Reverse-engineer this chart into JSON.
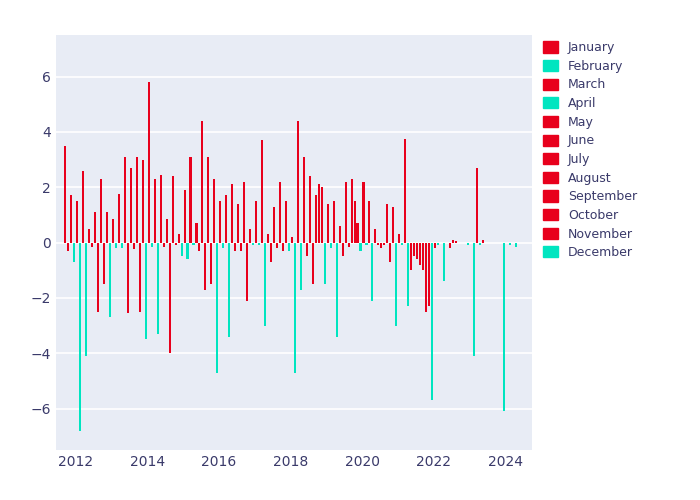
{
  "fig_bg_color": "#ffffff",
  "plot_bg_color": "#e8ecf5",
  "red_color": "#e8001c",
  "cyan_color": "#00e5c0",
  "months": [
    "January",
    "February",
    "March",
    "April",
    "May",
    "June",
    "July",
    "August",
    "September",
    "October",
    "November",
    "December"
  ],
  "month_colors": [
    "#e8001c",
    "#00e5c0",
    "#e8001c",
    "#00e5c0",
    "#e8001c",
    "#e8001c",
    "#e8001c",
    "#e8001c",
    "#e8001c",
    "#e8001c",
    "#e8001c",
    "#00e5c0"
  ],
  "data": [
    {
      "year": 2011,
      "month": 9,
      "value": 3.5
    },
    {
      "year": 2011,
      "month": 10,
      "value": -0.3
    },
    {
      "year": 2011,
      "month": 11,
      "value": 1.7
    },
    {
      "year": 2011,
      "month": 12,
      "value": -0.7
    },
    {
      "year": 2012,
      "month": 1,
      "value": 1.5
    },
    {
      "year": 2012,
      "month": 2,
      "value": -6.8
    },
    {
      "year": 2012,
      "month": 3,
      "value": 2.6
    },
    {
      "year": 2012,
      "month": 4,
      "value": -4.1
    },
    {
      "year": 2012,
      "month": 5,
      "value": 0.5
    },
    {
      "year": 2012,
      "month": 6,
      "value": -0.15
    },
    {
      "year": 2012,
      "month": 7,
      "value": 1.1
    },
    {
      "year": 2012,
      "month": 8,
      "value": -2.5
    },
    {
      "year": 2012,
      "month": 9,
      "value": 2.3
    },
    {
      "year": 2012,
      "month": 10,
      "value": -1.5
    },
    {
      "year": 2012,
      "month": 11,
      "value": 1.1
    },
    {
      "year": 2012,
      "month": 12,
      "value": -2.7
    },
    {
      "year": 2013,
      "month": 1,
      "value": 0.85
    },
    {
      "year": 2013,
      "month": 2,
      "value": -0.2
    },
    {
      "year": 2013,
      "month": 3,
      "value": 1.75
    },
    {
      "year": 2013,
      "month": 4,
      "value": -0.2
    },
    {
      "year": 2013,
      "month": 5,
      "value": 3.1
    },
    {
      "year": 2013,
      "month": 6,
      "value": -2.55
    },
    {
      "year": 2013,
      "month": 7,
      "value": 2.7
    },
    {
      "year": 2013,
      "month": 8,
      "value": -0.25
    },
    {
      "year": 2013,
      "month": 9,
      "value": 3.1
    },
    {
      "year": 2013,
      "month": 10,
      "value": -2.5
    },
    {
      "year": 2013,
      "month": 11,
      "value": 3.0
    },
    {
      "year": 2013,
      "month": 12,
      "value": -3.5
    },
    {
      "year": 2014,
      "month": 1,
      "value": 5.8
    },
    {
      "year": 2014,
      "month": 2,
      "value": -0.15
    },
    {
      "year": 2014,
      "month": 3,
      "value": 2.3
    },
    {
      "year": 2014,
      "month": 4,
      "value": -3.3
    },
    {
      "year": 2014,
      "month": 5,
      "value": 2.45
    },
    {
      "year": 2014,
      "month": 6,
      "value": -0.15
    },
    {
      "year": 2014,
      "month": 7,
      "value": 0.85
    },
    {
      "year": 2014,
      "month": 8,
      "value": -4.0
    },
    {
      "year": 2014,
      "month": 9,
      "value": 2.4
    },
    {
      "year": 2014,
      "month": 10,
      "value": -0.1
    },
    {
      "year": 2014,
      "month": 11,
      "value": 0.3
    },
    {
      "year": 2014,
      "month": 12,
      "value": -0.5
    },
    {
      "year": 2015,
      "month": 1,
      "value": 1.9
    },
    {
      "year": 2015,
      "month": 2,
      "value": -0.6
    },
    {
      "year": 2015,
      "month": 3,
      "value": 3.1
    },
    {
      "year": 2015,
      "month": 4,
      "value": -0.1
    },
    {
      "year": 2015,
      "month": 5,
      "value": 0.7
    },
    {
      "year": 2015,
      "month": 6,
      "value": -0.3
    },
    {
      "year": 2015,
      "month": 7,
      "value": 4.4
    },
    {
      "year": 2015,
      "month": 8,
      "value": -1.7
    },
    {
      "year": 2015,
      "month": 9,
      "value": 3.1
    },
    {
      "year": 2015,
      "month": 10,
      "value": -1.5
    },
    {
      "year": 2015,
      "month": 11,
      "value": 2.3
    },
    {
      "year": 2015,
      "month": 12,
      "value": -4.7
    },
    {
      "year": 2016,
      "month": 1,
      "value": 1.5
    },
    {
      "year": 2016,
      "month": 2,
      "value": -0.2
    },
    {
      "year": 2016,
      "month": 3,
      "value": 1.7
    },
    {
      "year": 2016,
      "month": 4,
      "value": -3.4
    },
    {
      "year": 2016,
      "month": 5,
      "value": 2.1
    },
    {
      "year": 2016,
      "month": 6,
      "value": -0.3
    },
    {
      "year": 2016,
      "month": 7,
      "value": 1.4
    },
    {
      "year": 2016,
      "month": 8,
      "value": -0.3
    },
    {
      "year": 2016,
      "month": 9,
      "value": 2.2
    },
    {
      "year": 2016,
      "month": 10,
      "value": -2.1
    },
    {
      "year": 2016,
      "month": 11,
      "value": 0.5
    },
    {
      "year": 2016,
      "month": 12,
      "value": -0.1
    },
    {
      "year": 2017,
      "month": 1,
      "value": 1.5
    },
    {
      "year": 2017,
      "month": 2,
      "value": -0.1
    },
    {
      "year": 2017,
      "month": 3,
      "value": 3.7
    },
    {
      "year": 2017,
      "month": 4,
      "value": -3.0
    },
    {
      "year": 2017,
      "month": 5,
      "value": 0.3
    },
    {
      "year": 2017,
      "month": 6,
      "value": -0.7
    },
    {
      "year": 2017,
      "month": 7,
      "value": 1.3
    },
    {
      "year": 2017,
      "month": 8,
      "value": -0.2
    },
    {
      "year": 2017,
      "month": 9,
      "value": 2.2
    },
    {
      "year": 2017,
      "month": 10,
      "value": -0.3
    },
    {
      "year": 2017,
      "month": 11,
      "value": 1.5
    },
    {
      "year": 2017,
      "month": 12,
      "value": -0.3
    },
    {
      "year": 2018,
      "month": 1,
      "value": 0.2
    },
    {
      "year": 2018,
      "month": 2,
      "value": -4.7
    },
    {
      "year": 2018,
      "month": 3,
      "value": 4.4
    },
    {
      "year": 2018,
      "month": 4,
      "value": -1.7
    },
    {
      "year": 2018,
      "month": 5,
      "value": 3.1
    },
    {
      "year": 2018,
      "month": 6,
      "value": -0.5
    },
    {
      "year": 2018,
      "month": 7,
      "value": 2.4
    },
    {
      "year": 2018,
      "month": 8,
      "value": -1.5
    },
    {
      "year": 2018,
      "month": 9,
      "value": 1.7
    },
    {
      "year": 2018,
      "month": 10,
      "value": 2.1
    },
    {
      "year": 2018,
      "month": 11,
      "value": 2.0
    },
    {
      "year": 2018,
      "month": 12,
      "value": -1.5
    },
    {
      "year": 2019,
      "month": 1,
      "value": 1.4
    },
    {
      "year": 2019,
      "month": 2,
      "value": -0.2
    },
    {
      "year": 2019,
      "month": 3,
      "value": 1.5
    },
    {
      "year": 2019,
      "month": 4,
      "value": -3.4
    },
    {
      "year": 2019,
      "month": 5,
      "value": 0.6
    },
    {
      "year": 2019,
      "month": 6,
      "value": -0.5
    },
    {
      "year": 2019,
      "month": 7,
      "value": 2.2
    },
    {
      "year": 2019,
      "month": 8,
      "value": -0.15
    },
    {
      "year": 2019,
      "month": 9,
      "value": 2.3
    },
    {
      "year": 2019,
      "month": 10,
      "value": 1.5
    },
    {
      "year": 2019,
      "month": 11,
      "value": 0.7
    },
    {
      "year": 2019,
      "month": 12,
      "value": -0.3
    },
    {
      "year": 2020,
      "month": 1,
      "value": 2.2
    },
    {
      "year": 2020,
      "month": 2,
      "value": -0.1
    },
    {
      "year": 2020,
      "month": 3,
      "value": 1.5
    },
    {
      "year": 2020,
      "month": 4,
      "value": -2.1
    },
    {
      "year": 2020,
      "month": 5,
      "value": 0.5
    },
    {
      "year": 2020,
      "month": 6,
      "value": -0.1
    },
    {
      "year": 2020,
      "month": 7,
      "value": -0.2
    },
    {
      "year": 2020,
      "month": 8,
      "value": -0.1
    },
    {
      "year": 2020,
      "month": 9,
      "value": 1.4
    },
    {
      "year": 2020,
      "month": 10,
      "value": -0.7
    },
    {
      "year": 2020,
      "month": 11,
      "value": 1.3
    },
    {
      "year": 2020,
      "month": 12,
      "value": -3.0
    },
    {
      "year": 2021,
      "month": 1,
      "value": 0.3
    },
    {
      "year": 2021,
      "month": 2,
      "value": -0.1
    },
    {
      "year": 2021,
      "month": 3,
      "value": 3.75
    },
    {
      "year": 2021,
      "month": 4,
      "value": -2.3
    },
    {
      "year": 2021,
      "month": 5,
      "value": -1.0
    },
    {
      "year": 2021,
      "month": 6,
      "value": -0.5
    },
    {
      "year": 2021,
      "month": 7,
      "value": -0.6
    },
    {
      "year": 2021,
      "month": 8,
      "value": -0.8
    },
    {
      "year": 2021,
      "month": 9,
      "value": -1.0
    },
    {
      "year": 2021,
      "month": 10,
      "value": -2.5
    },
    {
      "year": 2021,
      "month": 11,
      "value": -2.3
    },
    {
      "year": 2021,
      "month": 12,
      "value": -5.7
    },
    {
      "year": 2022,
      "month": 1,
      "value": -0.2
    },
    {
      "year": 2022,
      "month": 2,
      "value": -0.1
    },
    {
      "year": 2022,
      "month": 3,
      "value": 0.0
    },
    {
      "year": 2022,
      "month": 4,
      "value": -1.4
    },
    {
      "year": 2022,
      "month": 5,
      "value": 0.0
    },
    {
      "year": 2022,
      "month": 6,
      "value": -0.2
    },
    {
      "year": 2022,
      "month": 7,
      "value": 0.1
    },
    {
      "year": 2022,
      "month": 8,
      "value": 0.05
    },
    {
      "year": 2022,
      "month": 9,
      "value": 0.0
    },
    {
      "year": 2022,
      "month": 10,
      "value": 0.0
    },
    {
      "year": 2022,
      "month": 11,
      "value": 0.0
    },
    {
      "year": 2022,
      "month": 12,
      "value": -0.1
    },
    {
      "year": 2023,
      "month": 1,
      "value": 0.0
    },
    {
      "year": 2023,
      "month": 2,
      "value": -4.1
    },
    {
      "year": 2023,
      "month": 3,
      "value": 2.7
    },
    {
      "year": 2023,
      "month": 4,
      "value": -0.1
    },
    {
      "year": 2023,
      "month": 5,
      "value": 0.1
    },
    {
      "year": 2023,
      "month": 6,
      "value": 0.0
    },
    {
      "year": 2023,
      "month": 7,
      "value": 0.0
    },
    {
      "year": 2023,
      "month": 8,
      "value": 0.0
    },
    {
      "year": 2023,
      "month": 9,
      "value": 0.0
    },
    {
      "year": 2023,
      "month": 10,
      "value": 0.0
    },
    {
      "year": 2023,
      "month": 11,
      "value": 0.0
    },
    {
      "year": 2023,
      "month": 12,
      "value": -6.1
    },
    {
      "year": 2024,
      "month": 1,
      "value": 0.0
    },
    {
      "year": 2024,
      "month": 2,
      "value": -0.1
    },
    {
      "year": 2024,
      "month": 3,
      "value": 0.0
    },
    {
      "year": 2024,
      "month": 4,
      "value": -0.15
    },
    {
      "year": 2024,
      "month": 5,
      "value": 0.0
    },
    {
      "year": 2024,
      "month": 6,
      "value": 0.0
    },
    {
      "year": 2024,
      "month": 7,
      "value": 0.0
    },
    {
      "year": 2024,
      "month": 8,
      "value": 0.0
    },
    {
      "year": 2024,
      "month": 9,
      "value": 0.0
    },
    {
      "year": 2024,
      "month": 10,
      "value": 0.0
    },
    {
      "year": 2024,
      "month": 11,
      "value": 0.0
    },
    {
      "year": 2024,
      "month": 12,
      "value": 0.0
    }
  ],
  "ylim": [
    -7.5,
    7.5
  ],
  "yticks": [
    -6,
    -4,
    -2,
    0,
    2,
    4,
    6
  ],
  "xtick_years": [
    2012,
    2014,
    2016,
    2018,
    2020,
    2022,
    2024
  ],
  "xlim": [
    2011.45,
    2024.75
  ]
}
